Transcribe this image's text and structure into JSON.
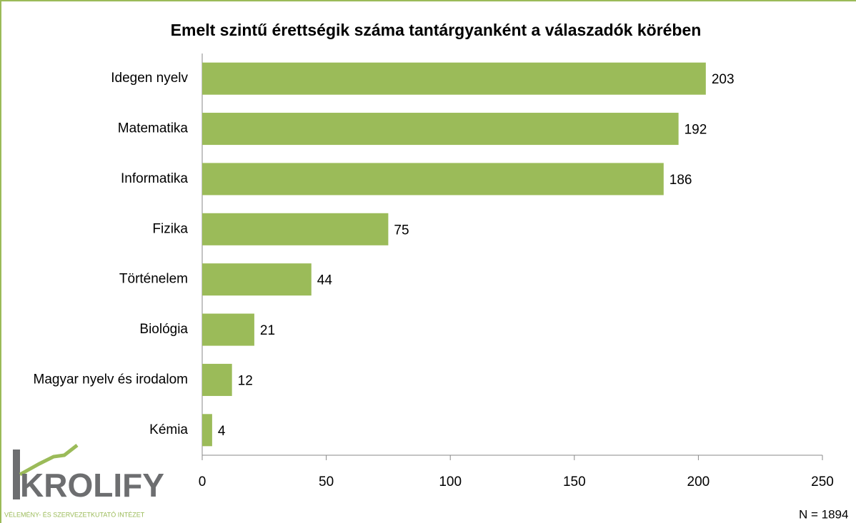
{
  "chart_data": {
    "type": "bar",
    "orientation": "horizontal",
    "title": "Emelt szintű érettségik száma tantárgyanként a válaszadók körében",
    "categories": [
      "Idegen nyelv",
      "Matematika",
      "Informatika",
      "Fizika",
      "Történelem",
      "Biológia",
      "Magyar nyelv és irodalom",
      "Kémia"
    ],
    "values": [
      203,
      192,
      186,
      75,
      44,
      21,
      12,
      4
    ],
    "color": "#9bbb59",
    "xlim": [
      0,
      250
    ],
    "xticks": [
      0,
      50,
      100,
      150,
      200,
      250
    ],
    "grid": false,
    "annotation": "N = 1894"
  },
  "logo": {
    "name": "KROLIFY",
    "tagline": "VÉLEMÉNY- ÉS SZERVEZETKUTATÓ INTÉZET"
  }
}
